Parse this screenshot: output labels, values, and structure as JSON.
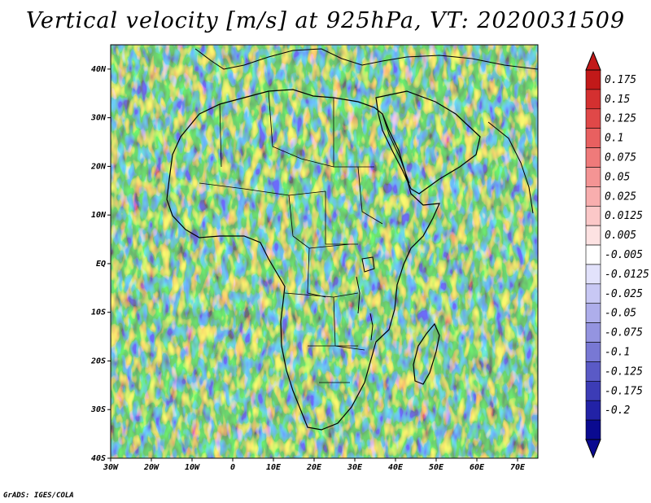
{
  "title": "Vertical velocity [m/s] at 925hPa, VT: 2020031509",
  "credit": "GrADS: IGES/COLA",
  "map": {
    "projection": "lat-lon",
    "lon_range": [
      -30,
      75
    ],
    "lat_range": [
      -40,
      45
    ],
    "x_ticks": [
      {
        "lon": -30,
        "label": "30W"
      },
      {
        "lon": -20,
        "label": "20W"
      },
      {
        "lon": -10,
        "label": "10W"
      },
      {
        "lon": 0,
        "label": "0"
      },
      {
        "lon": 10,
        "label": "10E"
      },
      {
        "lon": 20,
        "label": "20E"
      },
      {
        "lon": 30,
        "label": "30E"
      },
      {
        "lon": 40,
        "label": "40E"
      },
      {
        "lon": 50,
        "label": "50E"
      },
      {
        "lon": 60,
        "label": "60E"
      },
      {
        "lon": 70,
        "label": "70E"
      }
    ],
    "y_ticks": [
      {
        "lat": 40,
        "label": "40N"
      },
      {
        "lat": 30,
        "label": "30N"
      },
      {
        "lat": 20,
        "label": "20N"
      },
      {
        "lat": 10,
        "label": "10N"
      },
      {
        "lat": 0,
        "label": "EQ"
      },
      {
        "lat": -10,
        "label": "10S"
      },
      {
        "lat": -20,
        "label": "20S"
      },
      {
        "lat": -30,
        "label": "30S"
      },
      {
        "lat": -40,
        "label": "40S"
      }
    ]
  },
  "colorbar": {
    "labels": [
      "0.175",
      "0.15",
      "0.125",
      "0.1",
      "0.075",
      "0.05",
      "0.025",
      "0.0125",
      "0.005",
      "-0.005",
      "-0.0125",
      "-0.025",
      "-0.05",
      "-0.075",
      "-0.1",
      "-0.125",
      "-0.175",
      "-0.2"
    ],
    "colors": [
      "#c21919",
      "#d43030",
      "#e04848",
      "#e86060",
      "#ef7a7a",
      "#f49494",
      "#f8aeae",
      "#fbc8c8",
      "#fde2e2",
      "#ffffff",
      "#e2e2fb",
      "#c8c8f4",
      "#aeaeeb",
      "#9494e0",
      "#7878d4",
      "#5a5ac6",
      "#3c3cb6",
      "#2222a6",
      "#0a0a90"
    ]
  },
  "chart_data": {
    "type": "heatmap",
    "title": "Vertical velocity [m/s] at 925hPa, VT: 2020031509",
    "variable": "Vertical velocity",
    "units": "m/s",
    "level": "925hPa",
    "valid_time": "2020031509",
    "x_range": [
      -30,
      75
    ],
    "y_range": [
      -40,
      45
    ],
    "levels": [
      0.175,
      0.15,
      0.125,
      0.1,
      0.075,
      0.05,
      0.025,
      0.0125,
      0.005,
      -0.005,
      -0.0125,
      -0.025,
      -0.05,
      -0.075,
      -0.1,
      -0.125,
      -0.175,
      -0.2
    ]
  }
}
